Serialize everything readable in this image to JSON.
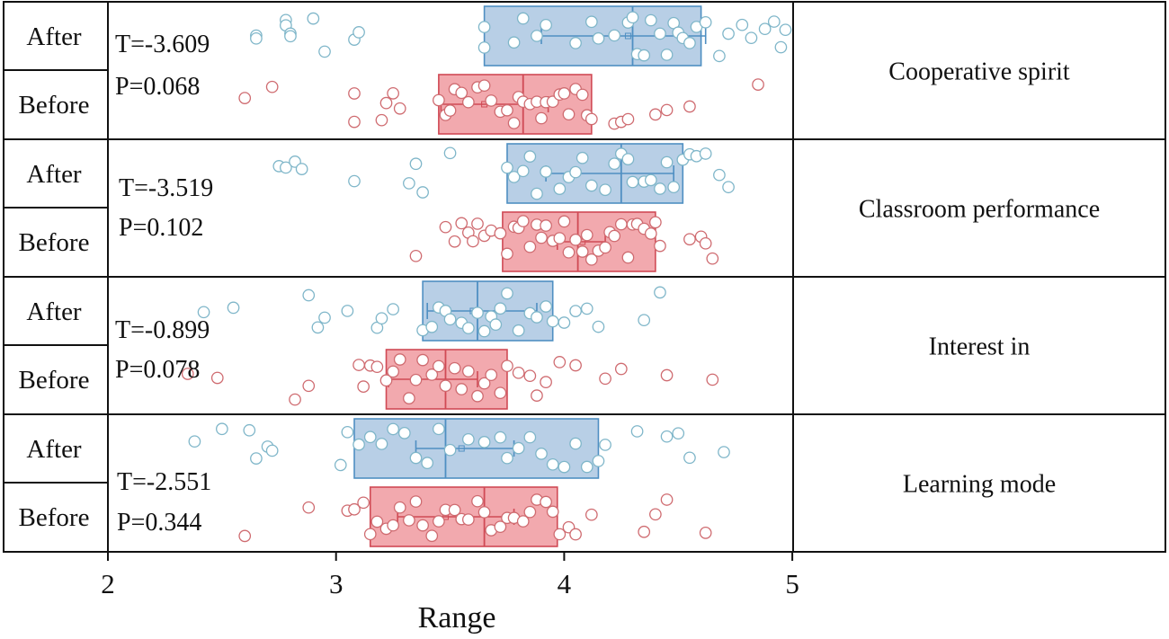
{
  "chart_data": {
    "type": "box",
    "orientation": "horizontal",
    "xlabel": "Range",
    "xlim": [
      2,
      5
    ],
    "x_ticks": [
      2,
      3,
      4,
      5
    ],
    "grid": false,
    "legend": "none",
    "colors": {
      "after_fill": "#b8cfe6",
      "after_stroke": "#4f8fc2",
      "after_point": "#7fb6c9",
      "before_fill": "#f2a9ae",
      "before_stroke": "#d04a55",
      "before_point": "#cf6b70",
      "frame": "#111111"
    },
    "groups": [
      {
        "category": "Cooperative spirit",
        "t_text": "T=-3.609",
        "p_text": "P=0.068",
        "series": [
          {
            "name": "After",
            "q1": 3.65,
            "median": 4.3,
            "q3": 4.6,
            "mean": 4.28,
            "mean_lo": 3.9,
            "mean_hi": 4.62,
            "points": [
              2.65,
              2.65,
              2.78,
              2.78,
              2.8,
              2.8,
              2.9,
              2.95,
              3.08,
              3.1,
              3.65,
              3.65,
              3.78,
              3.82,
              3.88,
              3.92,
              4.05,
              4.12,
              4.15,
              4.22,
              4.28,
              4.3,
              4.32,
              4.35,
              4.38,
              4.42,
              4.45,
              4.48,
              4.5,
              4.52,
              4.55,
              4.58,
              4.62,
              4.68,
              4.72,
              4.78,
              4.82,
              4.88,
              4.92,
              4.95,
              4.97
            ]
          },
          {
            "name": "Before",
            "q1": 3.45,
            "median": 3.82,
            "q3": 4.12,
            "mean": 3.65,
            "mean_lo": 3.46,
            "mean_hi": 3.93,
            "points": [
              2.6,
              2.72,
              3.08,
              3.08,
              3.2,
              3.22,
              3.25,
              3.28,
              3.45,
              3.48,
              3.5,
              3.52,
              3.55,
              3.58,
              3.62,
              3.65,
              3.68,
              3.72,
              3.75,
              3.78,
              3.8,
              3.82,
              3.85,
              3.88,
              3.9,
              3.92,
              3.95,
              3.98,
              4.0,
              4.02,
              4.05,
              4.08,
              4.1,
              4.12,
              4.22,
              4.25,
              4.28,
              4.4,
              4.45,
              4.55,
              4.85
            ]
          }
        ]
      },
      {
        "category": "Classroom performance",
        "t_text": "T=-3.519",
        "p_text": "P=0.102",
        "series": [
          {
            "name": "After",
            "q1": 3.75,
            "median": 4.25,
            "q3": 4.52,
            "mean": 4.05,
            "mean_lo": 3.92,
            "mean_hi": 4.48,
            "points": [
              2.75,
              2.78,
              2.82,
              2.85,
              3.08,
              3.32,
              3.35,
              3.38,
              3.5,
              3.75,
              3.78,
              3.82,
              3.85,
              3.88,
              3.92,
              3.98,
              4.02,
              4.05,
              4.08,
              4.12,
              4.18,
              4.22,
              4.25,
              4.28,
              4.3,
              4.35,
              4.38,
              4.42,
              4.45,
              4.48,
              4.52,
              4.55,
              4.58,
              4.62,
              4.68,
              4.72
            ]
          },
          {
            "name": "Before",
            "q1": 3.73,
            "median": 4.06,
            "q3": 4.4,
            "mean": 4.08,
            "mean_lo": 3.97,
            "mean_hi": 4.18,
            "points": [
              3.35,
              3.48,
              3.52,
              3.55,
              3.58,
              3.6,
              3.62,
              3.65,
              3.68,
              3.72,
              3.75,
              3.78,
              3.8,
              3.82,
              3.85,
              3.88,
              3.9,
              3.92,
              3.95,
              3.98,
              4.0,
              4.02,
              4.05,
              4.08,
              4.1,
              4.12,
              4.15,
              4.18,
              4.2,
              4.22,
              4.25,
              4.28,
              4.3,
              4.32,
              4.35,
              4.38,
              4.4,
              4.42,
              4.55,
              4.6,
              4.62,
              4.65
            ]
          }
        ]
      },
      {
        "category": "Interest in",
        "t_text": "T=-0.899",
        "p_text": "P=0.078",
        "series": [
          {
            "name": "After",
            "q1": 3.38,
            "median": 3.62,
            "q3": 3.95,
            "mean": 3.6,
            "mean_lo": 3.4,
            "mean_hi": 3.88,
            "points": [
              2.42,
              2.55,
              2.88,
              2.92,
              2.95,
              3.05,
              3.18,
              3.2,
              3.25,
              3.38,
              3.42,
              3.45,
              3.48,
              3.5,
              3.55,
              3.58,
              3.62,
              3.65,
              3.68,
              3.7,
              3.72,
              3.75,
              3.8,
              3.85,
              3.88,
              3.92,
              3.95,
              4.0,
              4.05,
              4.1,
              4.15,
              4.35,
              4.42
            ]
          },
          {
            "name": "Before",
            "q1": 3.22,
            "median": 3.48,
            "q3": 3.75,
            "mean": 3.35,
            "mean_lo": 3.23,
            "mean_hi": 3.62,
            "points": [
              2.35,
              2.48,
              2.82,
              2.88,
              3.1,
              3.12,
              3.15,
              3.18,
              3.22,
              3.25,
              3.28,
              3.32,
              3.35,
              3.38,
              3.42,
              3.45,
              3.48,
              3.52,
              3.55,
              3.58,
              3.62,
              3.65,
              3.68,
              3.72,
              3.75,
              3.8,
              3.85,
              3.88,
              3.92,
              3.98,
              4.05,
              4.18,
              4.25,
              4.45,
              4.65
            ]
          }
        ]
      },
      {
        "category": "Learning mode",
        "t_text": "T=-2.551",
        "p_text": "P=0.344",
        "series": [
          {
            "name": "After",
            "q1": 3.08,
            "median": 3.48,
            "q3": 4.15,
            "mean": 3.55,
            "mean_lo": 3.35,
            "mean_hi": 3.78,
            "points": [
              2.38,
              2.5,
              2.62,
              2.65,
              2.7,
              2.72,
              3.02,
              3.05,
              3.1,
              3.15,
              3.2,
              3.25,
              3.3,
              3.35,
              3.4,
              3.45,
              3.5,
              3.58,
              3.65,
              3.72,
              3.75,
              3.8,
              3.85,
              3.9,
              3.95,
              4.0,
              4.05,
              4.1,
              4.15,
              4.18,
              4.32,
              4.45,
              4.5,
              4.55,
              4.7
            ]
          },
          {
            "name": "Before",
            "q1": 3.15,
            "median": 3.65,
            "q3": 3.97,
            "mean": 3.48,
            "mean_lo": 3.27,
            "mean_hi": 3.78,
            "points": [
              2.6,
              2.88,
              3.05,
              3.08,
              3.12,
              3.15,
              3.18,
              3.22,
              3.25,
              3.28,
              3.32,
              3.35,
              3.38,
              3.42,
              3.45,
              3.48,
              3.52,
              3.55,
              3.58,
              3.62,
              3.65,
              3.68,
              3.72,
              3.75,
              3.78,
              3.82,
              3.85,
              3.88,
              3.92,
              3.95,
              3.98,
              4.02,
              4.05,
              4.12,
              4.35,
              4.4,
              4.45,
              4.62
            ]
          }
        ]
      }
    ]
  }
}
